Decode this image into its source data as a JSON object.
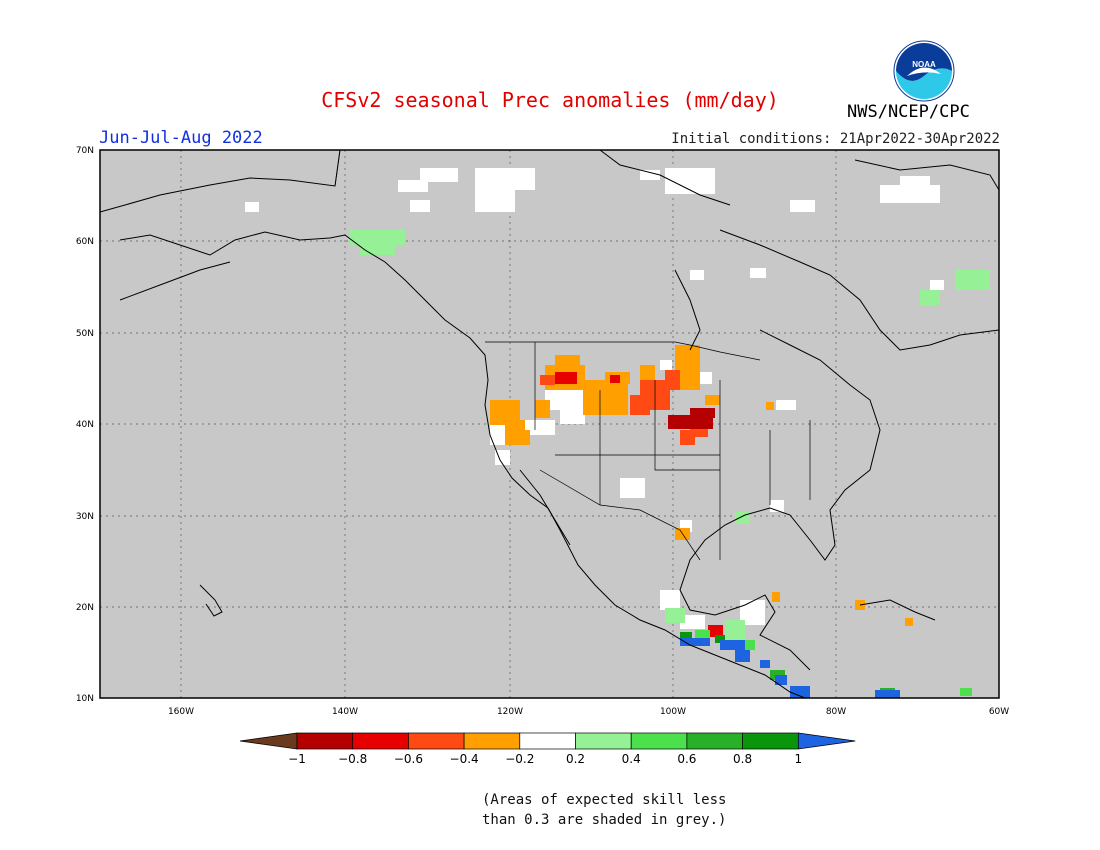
{
  "header": {
    "title": "CFSv2 seasonal Prec anomalies (mm/day)",
    "season": "Jun-Jul-Aug 2022",
    "initial_conditions": "Initial conditions: 21Apr2022-30Apr2022",
    "agency": "NWS/NCEP/CPC",
    "logo_text": "NOAA"
  },
  "map": {
    "lon_range": [
      "170W",
      "60W"
    ],
    "lat_range": [
      "10N",
      "70N"
    ],
    "lat_labels": [
      "70N",
      "60N",
      "50N",
      "40N",
      "30N",
      "20N",
      "10N"
    ],
    "lon_labels": [
      "160W",
      "140W",
      "120W",
      "100W",
      "80W",
      "60W"
    ],
    "background": "#c8c8c8",
    "gridlines": "dotted"
  },
  "colorbar": {
    "labels": [
      "−1",
      "−0.8",
      "−0.6",
      "−0.4",
      "−0.2",
      "0.2",
      "0.4",
      "0.6",
      "0.8",
      "1"
    ],
    "colors": [
      "#6b3a1e",
      "#b40000",
      "#e60000",
      "#ff4a14",
      "#ffa000",
      "#ffffff",
      "#96f096",
      "#4ce04c",
      "#28b028",
      "#0a960a",
      "#1e64e0"
    ]
  },
  "footnote": {
    "line1": "(Areas of expected skill less",
    "line2": "than 0.3 are shaded in grey.)"
  }
}
